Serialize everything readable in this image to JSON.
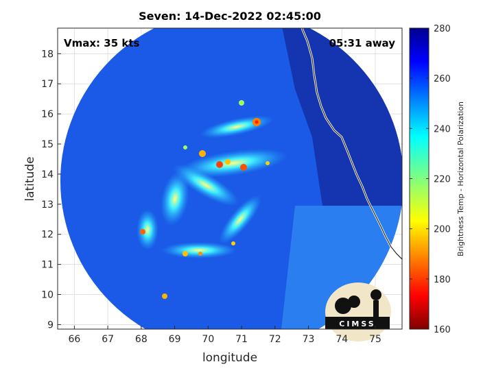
{
  "chart_data": {
    "type": "heatmap",
    "title": "Seven: 14-Dec-2022 02:45:00",
    "xlabel": "longitude",
    "ylabel": "latitude",
    "xlim": [
      65.5,
      75.8
    ],
    "ylim": [
      8.85,
      18.85
    ],
    "x_ticks": [
      66,
      67,
      68,
      69,
      70,
      71,
      72,
      73,
      74,
      75
    ],
    "y_ticks": [
      9,
      10,
      11,
      12,
      13,
      14,
      15,
      16,
      17,
      18
    ],
    "grid": true,
    "annotations": {
      "vmax": "Vmax: 35 kts",
      "away": "05:31 away"
    },
    "colorbar": {
      "label": "Brightness Temp - Horizontal Polarization",
      "range": [
        160,
        280
      ],
      "ticks": [
        160,
        180,
        200,
        220,
        240,
        260,
        280
      ],
      "colormap": "jet"
    },
    "logo_text": "CIMSS",
    "colors": {
      "background_field": "#1a5ae6",
      "swath_east": "#1434b0",
      "coastline": "#ffffff"
    }
  }
}
